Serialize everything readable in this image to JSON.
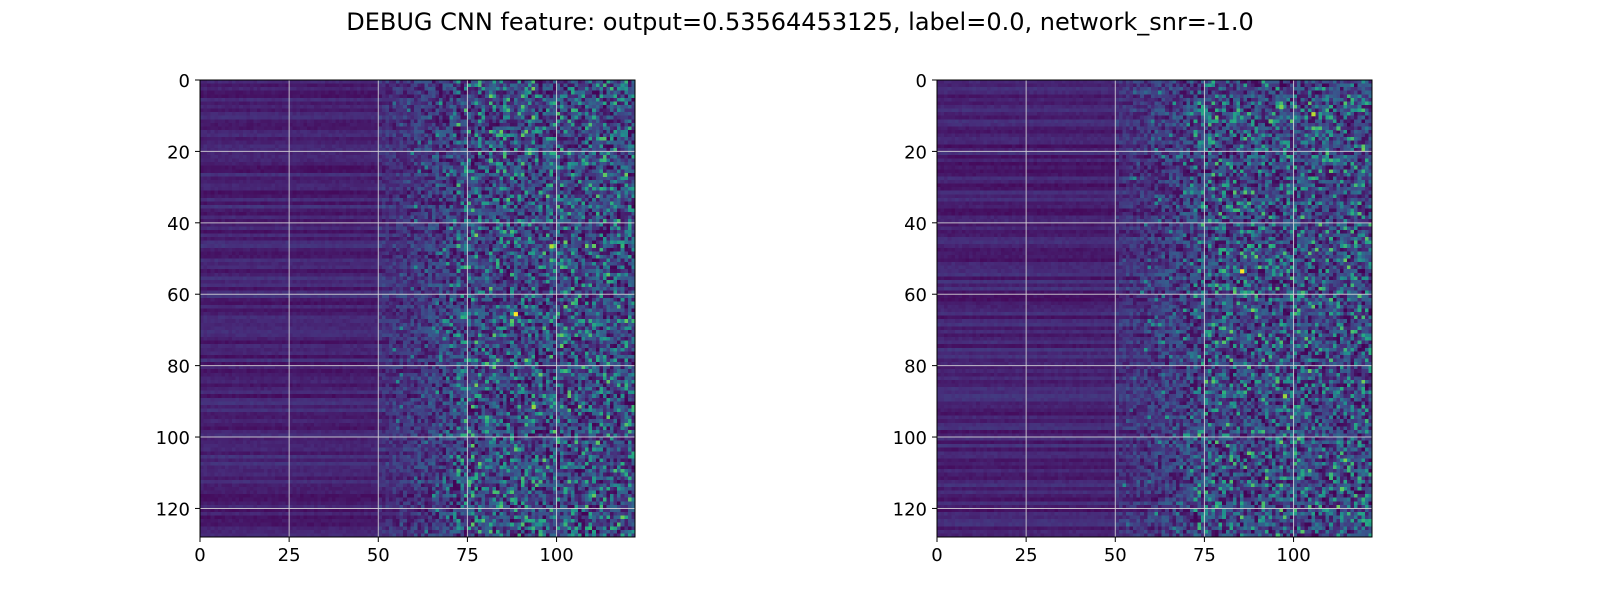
{
  "figure": {
    "suptitle": "DEBUG CNN feature: output=0.53564453125, label=0.0, network_snr=-1.0"
  },
  "colors": {
    "colormap": "viridis",
    "grid": "#d9d9d9",
    "axes": "#000000"
  },
  "chart_data": [
    {
      "type": "heatmap",
      "colormap": "viridis",
      "rows": 128,
      "cols": 122,
      "xlim": [
        0,
        122
      ],
      "ylim": [
        128,
        0
      ],
      "xticks": [
        0,
        25,
        50,
        75,
        100
      ],
      "yticks": [
        0,
        20,
        40,
        60,
        80,
        100,
        120
      ],
      "grid": true,
      "texture": {
        "quiet_cols_end": 50,
        "transition_cols_end": 72,
        "seed": 17
      },
      "hotspots": [
        {
          "row": 65,
          "col": 88,
          "value": 1.0
        },
        {
          "row": 46,
          "col": 98,
          "value": 0.9
        },
        {
          "row": 91,
          "col": 93,
          "value": 0.85
        },
        {
          "row": 26,
          "col": 113,
          "value": 0.75
        },
        {
          "row": 22,
          "col": 81,
          "value": 0.7
        },
        {
          "row": 101,
          "col": 111,
          "value": 0.75
        },
        {
          "row": 112,
          "col": 75,
          "value": 0.7
        },
        {
          "row": 117,
          "col": 87,
          "value": 0.65
        }
      ]
    },
    {
      "type": "heatmap",
      "colormap": "viridis",
      "rows": 128,
      "cols": 122,
      "xlim": [
        0,
        122
      ],
      "ylim": [
        128,
        0
      ],
      "xticks": [
        0,
        25,
        50,
        75,
        100
      ],
      "yticks": [
        0,
        20,
        40,
        60,
        80,
        100,
        120
      ],
      "grid": true,
      "texture": {
        "quiet_cols_end": 50,
        "transition_cols_end": 72,
        "seed": 42
      },
      "hotspots": [
        {
          "row": 53,
          "col": 85,
          "value": 1.0
        },
        {
          "row": 9,
          "col": 105,
          "value": 0.9
        },
        {
          "row": 7,
          "col": 96,
          "value": 0.8
        },
        {
          "row": 11,
          "col": 93,
          "value": 0.75
        },
        {
          "row": 88,
          "col": 97,
          "value": 0.85
        },
        {
          "row": 114,
          "col": 113,
          "value": 0.75
        },
        {
          "row": 13,
          "col": 112,
          "value": 0.7
        },
        {
          "row": 59,
          "col": 102,
          "value": 0.7
        },
        {
          "row": 127,
          "col": 95,
          "value": 0.7
        }
      ]
    }
  ]
}
